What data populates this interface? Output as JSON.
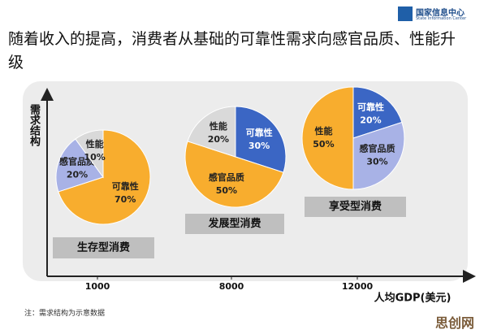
{
  "header": {
    "logo_cn": "国家信息中心",
    "logo_en": "State Information Center"
  },
  "title": "随着收入的提高，消费者从基础的可靠性需求向感官品质、性能升级",
  "axis": {
    "y_label": "需求结构",
    "x_label": "人均GDP(美元)",
    "x_ticks": [
      1000,
      8000,
      12000
    ]
  },
  "chart_data": [
    {
      "type": "pie",
      "title": "生存型消费",
      "categories": [
        "可靠性",
        "感官品质",
        "性能"
      ],
      "values": [
        70,
        20,
        10
      ],
      "value_labels": [
        "70%",
        "20%",
        "10%"
      ],
      "colors": [
        "#f8ad2e",
        "#a8b2e6",
        "#d9d9d9"
      ]
    },
    {
      "type": "pie",
      "title": "发展型消费",
      "categories": [
        "可靠性",
        "感官品质",
        "性能"
      ],
      "values": [
        30,
        50,
        20
      ],
      "value_labels": [
        "30%",
        "50%",
        "20%"
      ],
      "colors": [
        "#3b66c4",
        "#f8ad2e",
        "#d9d9d9"
      ]
    },
    {
      "type": "pie",
      "title": "享受型消费",
      "categories": [
        "可靠性",
        "感官品质",
        "性能"
      ],
      "values": [
        20,
        30,
        50
      ],
      "value_labels": [
        "20%",
        "30%",
        "50%"
      ],
      "colors": [
        "#3b66c4",
        "#a8b2e6",
        "#f8ad2e"
      ]
    }
  ],
  "note": "注：需求结构为示意数据",
  "watermark": "思创网"
}
